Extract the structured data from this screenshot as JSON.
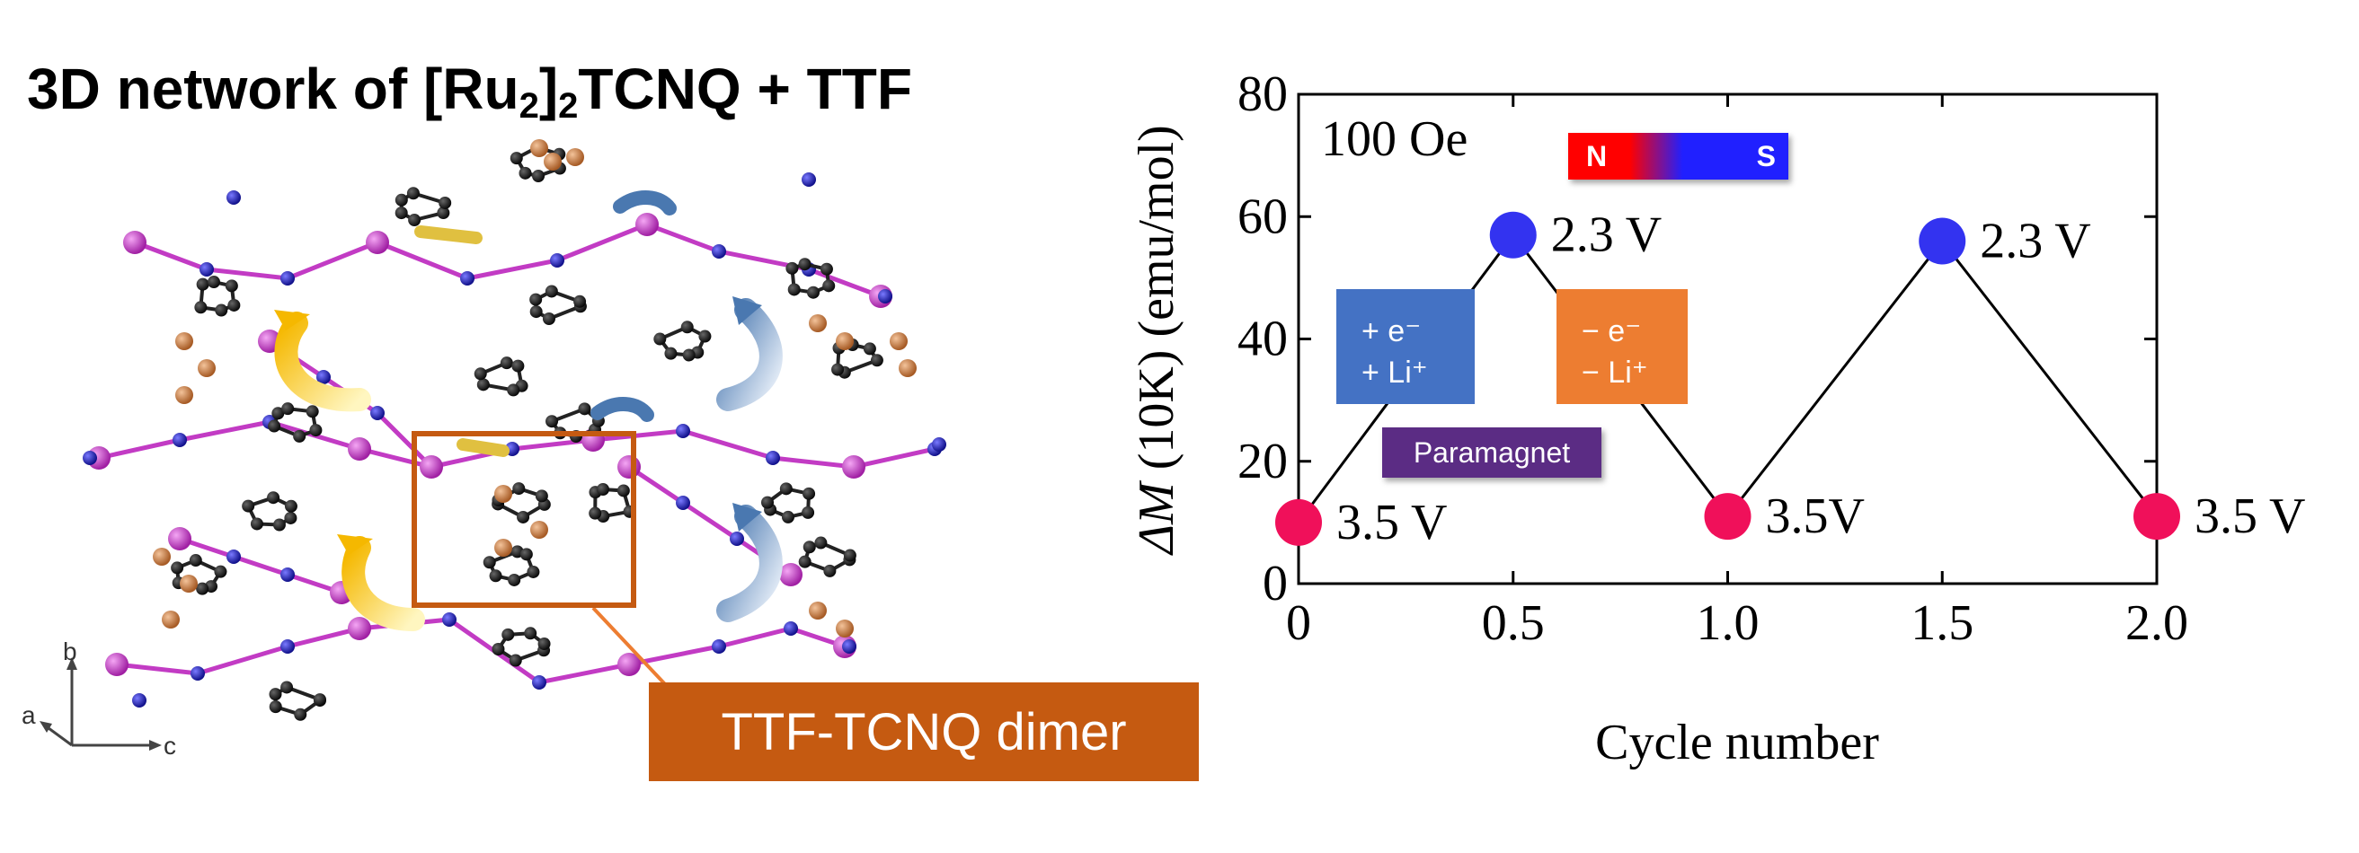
{
  "title": {
    "main": "3D network of [Ru",
    "sub1": "2",
    "mid": "]",
    "sub2": "2",
    "rest": "TCNQ + TTF"
  },
  "structure": {
    "axes": {
      "a": "a",
      "b": "b",
      "c": "c"
    },
    "dimer_label": "TTF-TCNQ dimer",
    "colors": {
      "ruthenium": "#c23bc4",
      "carbon": "#1a1a1a",
      "nitrogen": "#1c1ca8",
      "sulfur": "#c87941",
      "box": "#c55a11"
    }
  },
  "chart_data": {
    "type": "line",
    "xlabel": "Cycle number",
    "ylabel": "ΔM (10K) (emu/mol)",
    "ylabel_italic": "ΔM",
    "ylabel_rest": " (10K) (emu/mol)",
    "xlim": [
      0,
      2.0
    ],
    "ylim": [
      0,
      80
    ],
    "xticks": [
      "0",
      "0.5",
      "1.0",
      "1.5",
      "2.0"
    ],
    "xtick_values": [
      0,
      0.5,
      1.0,
      1.5,
      2.0
    ],
    "yticks": [
      "0",
      "20",
      "40",
      "60",
      "80"
    ],
    "ytick_values": [
      0,
      20,
      40,
      60,
      80
    ],
    "points": [
      {
        "x": 0,
        "y": 10,
        "label": "3.5 V",
        "color": "#f0105a"
      },
      {
        "x": 0.5,
        "y": 57,
        "label": "2.3 V",
        "color": "#3333f0"
      },
      {
        "x": 1.0,
        "y": 11,
        "label": "3.5V",
        "color": "#f0105a"
      },
      {
        "x": 1.5,
        "y": 56,
        "label": "2.3 V",
        "color": "#3333f0"
      },
      {
        "x": 2.0,
        "y": 11,
        "label": "3.5 V",
        "color": "#f0105a"
      }
    ],
    "field_label": "100 Oe",
    "magnet": {
      "n": "N",
      "s": "S"
    },
    "reduction": {
      "line1": "+ e⁻",
      "line2": "+ Li⁺",
      "color": "#4472c4"
    },
    "oxidation": {
      "line1": "− e⁻",
      "line2": "− Li⁺",
      "color": "#ed7d31"
    },
    "state_label": "Paramagnet"
  }
}
